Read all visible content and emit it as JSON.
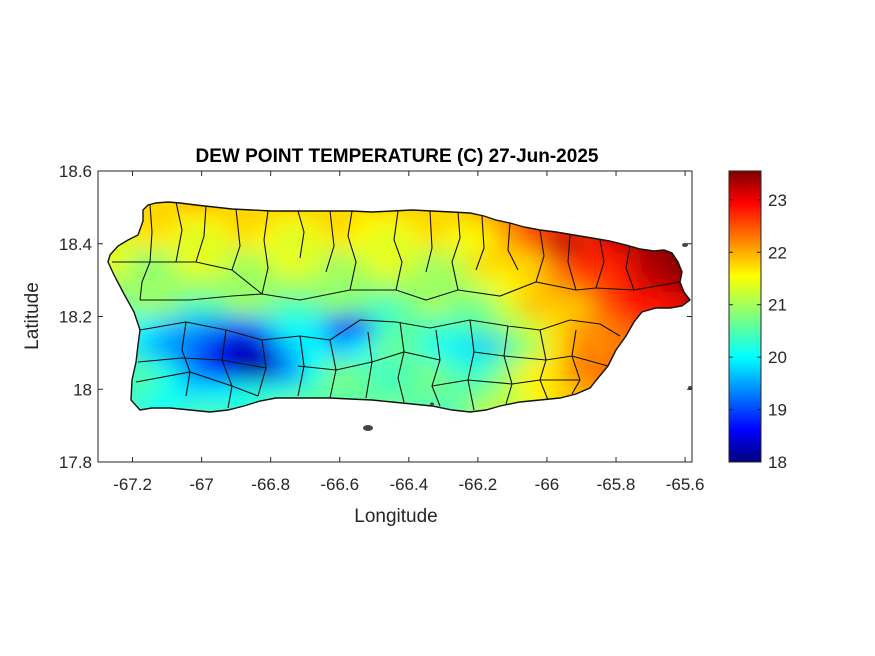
{
  "chart_data": {
    "type": "heatmap",
    "title": "DEW POINT TEMPERATURE (C) 27-Jun-2025",
    "xlabel": "Longitude",
    "ylabel": "Latitude",
    "xlim": [
      -67.3,
      -65.58
    ],
    "ylim": [
      17.8,
      18.6
    ],
    "xticks": [
      -67.2,
      -67,
      -66.8,
      -66.6,
      -66.4,
      -66.2,
      -66,
      -65.8,
      -65.6
    ],
    "xtick_labels": [
      "-67.2",
      "-67",
      "-66.8",
      "-66.6",
      "-66.4",
      "-66.2",
      "-66",
      "-65.8",
      "-65.6"
    ],
    "yticks": [
      17.8,
      18,
      18.2,
      18.4,
      18.6
    ],
    "ytick_labels": [
      "17.8",
      "18",
      "18.2",
      "18.4",
      "18.6"
    ],
    "colormap": "jet",
    "colorbar": {
      "range": [
        18,
        23.55
      ],
      "ticks": [
        18,
        19,
        20,
        21,
        22,
        23
      ],
      "tick_labels": [
        "18",
        "19",
        "20",
        "21",
        "22",
        "23"
      ]
    },
    "region": "Puerto Rico",
    "municipality_boundaries": true,
    "grid": false,
    "field_features": [
      {
        "description": "dry core south-west",
        "lon": -66.85,
        "lat": 18.06,
        "value": 18.1
      },
      {
        "description": "dry band south-central",
        "lon": -66.88,
        "lat": 18.14,
        "value": 18.6
      },
      {
        "description": "dry pocket central",
        "lon": -66.57,
        "lat": 18.17,
        "value": 18.8
      },
      {
        "description": "cool area central-east",
        "lon": -66.18,
        "lat": 18.12,
        "value": 19.8
      },
      {
        "description": "humid north-east",
        "lon": -65.95,
        "lat": 18.4,
        "value": 23.3
      },
      {
        "description": "humid east coast",
        "lon": -65.7,
        "lat": 18.33,
        "value": 23.3
      },
      {
        "description": "warm south-east",
        "lon": -65.9,
        "lat": 18.05,
        "value": 22.3
      },
      {
        "description": "north coast",
        "lon": -66.5,
        "lat": 18.46,
        "value": 21.5
      },
      {
        "description": "west coast",
        "lon": -67.15,
        "lat": 18.35,
        "value": 20.8
      }
    ]
  }
}
